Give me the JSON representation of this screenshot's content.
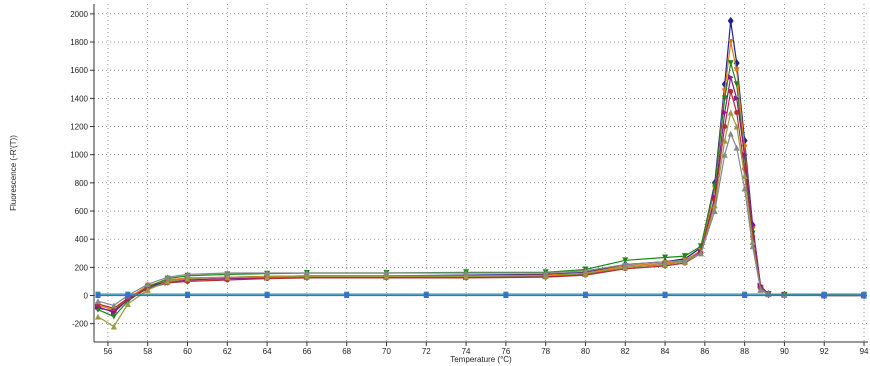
{
  "chart_data": {
    "type": "line",
    "title": "",
    "xlabel": "Temperature (°C)",
    "ylabel": "Fluorescence (-R'(T))",
    "xlim": [
      55.3,
      94.2
    ],
    "ylim": [
      -330,
      2070
    ],
    "xticks": [
      56,
      58,
      60,
      62,
      64,
      66,
      68,
      70,
      72,
      74,
      76,
      78,
      80,
      82,
      84,
      86,
      88,
      90,
      92,
      94
    ],
    "xtick_labels": [
      "56",
      "58",
      "60",
      "62",
      "64",
      "66",
      "68",
      "70",
      "72",
      "74",
      "76",
      "78",
      "80",
      "82",
      "84",
      "86",
      "88",
      "90",
      "92",
      "94"
    ],
    "yticks": [
      -200,
      0,
      200,
      400,
      600,
      800,
      1000,
      1200,
      1400,
      1600,
      1800,
      2000
    ],
    "ytick_labels": [
      "-200",
      "0",
      "200",
      "400",
      "600",
      "800",
      "1000",
      "1200",
      "1400",
      "1600",
      "1800",
      "2000"
    ],
    "grid": true,
    "legend": "none",
    "series": [
      {
        "color": "#1f1f8f",
        "marker": "diamond",
        "x": [
          55.5,
          56.3,
          57.0,
          58.0,
          59.0,
          60.0,
          62.0,
          64.0,
          66.0,
          70.0,
          74.0,
          78.0,
          80.0,
          82.0,
          84.0,
          85.0,
          85.8,
          86.5,
          87.0,
          87.3,
          87.6,
          88.0,
          88.4,
          88.8,
          89.2,
          90.0,
          92.0,
          94.0
        ],
        "y": [
          -90,
          -110,
          -30,
          60,
          100,
          120,
          130,
          135,
          140,
          140,
          145,
          150,
          165,
          220,
          240,
          260,
          340,
          800,
          1500,
          1950,
          1650,
          1100,
          500,
          60,
          10,
          5,
          0,
          0
        ]
      },
      {
        "color": "#e07a10",
        "marker": "triangle-down",
        "x": [
          55.5,
          56.3,
          57.0,
          58.0,
          59.0,
          60.0,
          62.0,
          64.0,
          66.0,
          70.0,
          74.0,
          78.0,
          80.0,
          82.0,
          84.0,
          85.0,
          85.8,
          86.5,
          87.0,
          87.3,
          87.6,
          88.0,
          88.4,
          88.8,
          89.2,
          90.0,
          92.0,
          94.0
        ],
        "y": [
          -70,
          -100,
          -20,
          70,
          110,
          125,
          130,
          135,
          140,
          140,
          140,
          145,
          160,
          210,
          230,
          250,
          320,
          760,
          1450,
          1800,
          1600,
          1050,
          470,
          55,
          10,
          5,
          0,
          0
        ]
      },
      {
        "color": "#1b8a1b",
        "marker": "triangle-down",
        "x": [
          55.5,
          56.3,
          57.0,
          58.0,
          59.0,
          60.0,
          62.0,
          64.0,
          66.0,
          70.0,
          74.0,
          78.0,
          80.0,
          82.0,
          84.0,
          85.0,
          85.8,
          86.5,
          87.0,
          87.3,
          87.6,
          88.0,
          88.4,
          88.8,
          89.2,
          90.0,
          92.0,
          94.0
        ],
        "y": [
          -100,
          -150,
          -40,
          60,
          120,
          140,
          150,
          155,
          160,
          160,
          165,
          165,
          185,
          250,
          270,
          280,
          350,
          780,
          1400,
          1650,
          1500,
          980,
          440,
          50,
          10,
          5,
          0,
          0
        ]
      },
      {
        "color": "#8b1a8b",
        "marker": "triangle-right",
        "x": [
          55.5,
          56.3,
          57.0,
          58.0,
          59.0,
          60.0,
          62.0,
          64.0,
          66.0,
          70.0,
          74.0,
          78.0,
          80.0,
          82.0,
          84.0,
          85.0,
          85.8,
          86.5,
          87.0,
          87.3,
          87.6,
          88.0,
          88.4,
          88.8,
          89.2,
          90.0,
          92.0,
          94.0
        ],
        "y": [
          -80,
          -120,
          -30,
          50,
          90,
          110,
          120,
          125,
          130,
          130,
          130,
          135,
          150,
          200,
          220,
          240,
          310,
          700,
          1300,
          1550,
          1400,
          1000,
          500,
          70,
          10,
          5,
          0,
          0
        ]
      },
      {
        "color": "#b03030",
        "marker": "circle",
        "x": [
          55.5,
          56.3,
          57.0,
          58.0,
          59.0,
          60.0,
          62.0,
          64.0,
          66.0,
          70.0,
          74.0,
          78.0,
          80.0,
          82.0,
          84.0,
          85.0,
          85.8,
          86.5,
          87.0,
          87.3,
          87.6,
          88.0,
          88.4,
          88.8,
          89.2,
          90.0,
          92.0,
          94.0
        ],
        "y": [
          -60,
          -90,
          -20,
          50,
          90,
          100,
          110,
          120,
          125,
          125,
          125,
          130,
          145,
          190,
          210,
          230,
          300,
          680,
          1200,
          1450,
          1300,
          900,
          420,
          50,
          10,
          5,
          0,
          0
        ]
      },
      {
        "color": "#9a9a40",
        "marker": "triangle-up",
        "x": [
          55.5,
          56.3,
          57.0,
          58.0,
          59.0,
          60.0,
          62.0,
          64.0,
          66.0,
          70.0,
          74.0,
          78.0,
          80.0,
          82.0,
          84.0,
          85.0,
          85.8,
          86.5,
          87.0,
          87.3,
          87.6,
          88.0,
          88.4,
          88.8,
          89.2,
          90.0,
          92.0,
          94.0
        ],
        "y": [
          -150,
          -220,
          -60,
          40,
          100,
          120,
          130,
          130,
          135,
          135,
          135,
          140,
          155,
          200,
          220,
          240,
          300,
          640,
          1100,
          1300,
          1200,
          850,
          380,
          45,
          10,
          5,
          0,
          0
        ]
      },
      {
        "color": "#888888",
        "marker": "triangle-up",
        "x": [
          55.5,
          56.3,
          57.0,
          58.0,
          59.0,
          60.0,
          62.0,
          64.0,
          66.0,
          70.0,
          74.0,
          78.0,
          80.0,
          82.0,
          84.0,
          85.0,
          85.8,
          86.5,
          87.0,
          87.3,
          87.6,
          88.0,
          88.4,
          88.8,
          89.2,
          90.0,
          92.0,
          94.0
        ],
        "y": [
          -40,
          -70,
          0,
          80,
          130,
          150,
          160,
          160,
          160,
          160,
          160,
          160,
          175,
          220,
          240,
          250,
          300,
          600,
          1000,
          1150,
          1050,
          760,
          350,
          40,
          10,
          5,
          0,
          0
        ]
      },
      {
        "color": "#2f8f9f",
        "marker": "square",
        "x": [
          55.5,
          57.0,
          60.0,
          64.0,
          68.0,
          72.0,
          76.0,
          80.0,
          84.0,
          88.0,
          92.0,
          94.0
        ],
        "y": [
          10,
          10,
          10,
          10,
          10,
          10,
          10,
          10,
          10,
          10,
          10,
          10
        ]
      },
      {
        "color": "#3a6fd0",
        "marker": "square",
        "x": [
          55.5,
          57.0,
          60.0,
          64.0,
          68.0,
          72.0,
          76.0,
          80.0,
          84.0,
          88.0,
          92.0,
          94.0
        ],
        "y": [
          0,
          0,
          0,
          0,
          0,
          0,
          0,
          0,
          0,
          0,
          0,
          0
        ]
      }
    ]
  }
}
